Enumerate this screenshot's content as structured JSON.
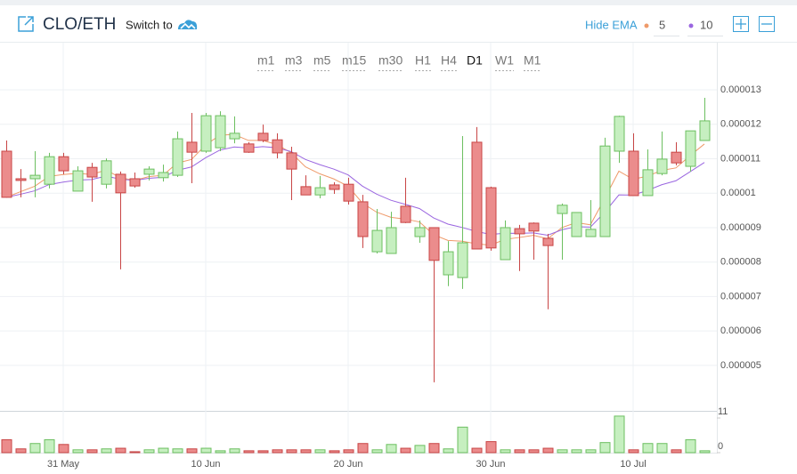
{
  "chart_data": {
    "type": "candlestick",
    "title": "CLO/ETH",
    "switch_label": "Switch to",
    "ema_toggle": "Hide EMA",
    "timeframes": [
      "m1",
      "m3",
      "m5",
      "m15",
      "m30",
      "H1",
      "H4",
      "D1",
      "W1",
      "M1"
    ],
    "active_timeframe": 7,
    "categories": [
      null,
      null,
      null,
      null,
      "31 May",
      null,
      null,
      null,
      null,
      null,
      null,
      null,
      null,
      null,
      "10 Jun",
      null,
      null,
      null,
      null,
      null,
      null,
      null,
      null,
      null,
      "20 Jun",
      null,
      null,
      null,
      null,
      null,
      null,
      null,
      null,
      null,
      "30 Jun",
      null,
      null,
      null,
      null,
      null,
      null,
      null,
      null,
      null,
      "10 Jul",
      null,
      null,
      null,
      null,
      null
    ],
    "open": [
      1.122e-05,
      1.042e-05,
      1.042e-05,
      1.026e-05,
      1.106e-05,
      1.006e-05,
      1.075e-05,
      1.026e-05,
      1.055e-05,
      1.042e-05,
      1.055e-05,
      1.045e-05,
      1.052e-05,
      1.148e-05,
      1.122e-05,
      1.132e-05,
      1.158e-05,
      1.143e-05,
      1.174e-05,
      1.155e-05,
      1.117e-05,
      1.019e-05,
      9.95e-06,
      1.024e-05,
      1.026e-05,
      9.75e-06,
      8.3e-06,
      8.25e-06,
      9.62e-06,
      8.74e-06,
      9e-06,
      7.63e-06,
      7.55e-06,
      1.148e-05,
      1.016e-05,
      8.07e-06,
      8.97e-06,
      9.13e-06,
      8.69e-06,
      9.41e-06,
      8.74e-06,
      8.74e-06,
      8.74e-06,
      1.122e-05,
      1.122e-05,
      9.93e-06,
      1.057e-05,
      1.119e-05,
      1.078e-05,
      1.153e-05
    ],
    "high": [
      1.153e-05,
      1.07e-05,
      1.122e-05,
      1.117e-05,
      1.117e-05,
      1.078e-05,
      1.088e-05,
      1.101e-05,
      1.063e-05,
      1.06e-05,
      1.078e-05,
      1.083e-05,
      1.179e-05,
      1.233e-05,
      1.233e-05,
      1.238e-05,
      1.223e-05,
      1.148e-05,
      1.199e-05,
      1.174e-05,
      1.135e-05,
      1.052e-05,
      1.05e-05,
      1.032e-05,
      1.045e-05,
      9.95e-06,
      9.54e-06,
      9.46e-06,
      1.045e-05,
      9.21e-06,
      9e-06,
      8.61e-06,
      1.166e-05,
      1.192e-05,
      1.019e-05,
      9.21e-06,
      9.08e-06,
      9.15e-06,
      8.82e-06,
      9.7e-06,
      9.44e-06,
      9.8e-06,
      1.161e-05,
      1.225e-05,
      1.174e-05,
      1.127e-05,
      1.179e-05,
      1.148e-05,
      1.181e-05,
      1.277e-05
    ],
    "low": [
      9.88e-06,
      9.88e-06,
      9.88e-06,
      1.014e-05,
      1.055e-05,
      1.006e-05,
      9.75e-06,
      1.014e-05,
      7.79e-06,
      1.016e-05,
      1.037e-05,
      1.034e-05,
      1.047e-05,
      1.029e-05,
      1.117e-05,
      1.122e-05,
      1.145e-05,
      1.117e-05,
      1.148e-05,
      1.101e-05,
      9.8e-06,
      9.95e-06,
      9.85e-06,
      9.98e-06,
      9.67e-06,
      8.41e-06,
      8.25e-06,
      8.25e-06,
      9.13e-06,
      8.56e-06,
      4.51e-06,
      7.3e-06,
      7.22e-06,
      8.38e-06,
      8.33e-06,
      8.07e-06,
      7.74e-06,
      8.07e-06,
      6.63e-06,
      8.07e-06,
      8.74e-06,
      8.74e-06,
      8.74e-06,
      1.088e-05,
      9.93e-06,
      9.93e-06,
      1.052e-05,
      1.081e-05,
      1.063e-05,
      1.153e-05
    ],
    "close": [
      9.88e-06,
      1.037e-05,
      1.052e-05,
      1.106e-05,
      1.065e-05,
      1.065e-05,
      1.047e-05,
      1.094e-05,
      1.001e-05,
      1.021e-05,
      1.07e-05,
      1.06e-05,
      1.158e-05,
      1.119e-05,
      1.225e-05,
      1.225e-05,
      1.174e-05,
      1.119e-05,
      1.153e-05,
      1.117e-05,
      1.07e-05,
      9.95e-06,
      1.016e-05,
      1.011e-05,
      9.77e-06,
      8.74e-06,
      8.92e-06,
      9e-06,
      9.15e-06,
      9e-06,
      8.05e-06,
      8.3e-06,
      8.56e-06,
      8.38e-06,
      8.41e-06,
      9e-06,
      8.82e-06,
      8.9e-06,
      8.48e-06,
      9.65e-06,
      9.44e-06,
      8.95e-06,
      1.137e-05,
      1.223e-05,
      9.93e-06,
      1.068e-05,
      1.099e-05,
      1.088e-05,
      1.181e-05,
      1.21e-05
    ],
    "volume": [
      4.1,
      1.2,
      2.9,
      4.1,
      2.6,
      0.9,
      0.9,
      1.2,
      1.4,
      0.3,
      0.9,
      1.4,
      1.2,
      1.2,
      1.4,
      0.6,
      1.2,
      0.6,
      0.6,
      0.9,
      0.9,
      0.9,
      0.9,
      0.6,
      0.9,
      2.9,
      0.9,
      2.6,
      1.4,
      2.3,
      2.9,
      1.2,
      8.1,
      1.4,
      3.5,
      0.9,
      0.9,
      0.9,
      1.4,
      0.9,
      0.9,
      0.9,
      3.2,
      11.6,
      0.9,
      2.9,
      2.9,
      0.9,
      4.1,
      0.6
    ],
    "ylim": [
      3.68e-06,
      1.437e-05
    ],
    "yticks": [
      5e-06,
      6e-06,
      7e-06,
      8e-06,
      9e-06,
      1e-05,
      1.1e-05,
      1.2e-05,
      1.3e-05
    ],
    "volume_ylim": [
      0,
      12.7
    ],
    "volume_yticks": [
      0,
      11
    ],
    "up_color": "#c6efc0",
    "up_stroke": "#6cbf60",
    "down_color": "#eb8c8c",
    "down_stroke": "#c84545",
    "ema": [
      {
        "period": 5,
        "color": "#ef9a6a"
      },
      {
        "period": 10,
        "color": "#9a66e0"
      }
    ],
    "grid": true
  }
}
